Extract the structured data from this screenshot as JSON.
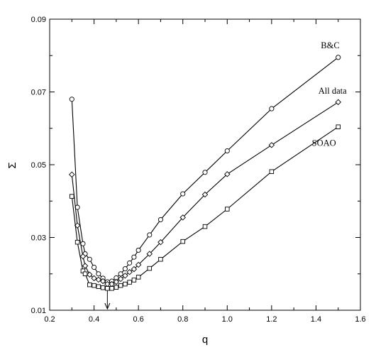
{
  "chart_data": {
    "type": "line",
    "xlabel": "q",
    "ylabel": "Σ",
    "xlim": [
      0.2,
      1.6
    ],
    "ylim": [
      0.01,
      0.09
    ],
    "xticks": [
      "0.2",
      "0.4",
      "0.6",
      "0.8",
      "1.0",
      "1.2",
      "1.4",
      "1.6"
    ],
    "yticks": [
      "0.01",
      "0.03",
      "0.05",
      "0.07",
      "0.09"
    ],
    "grid": false,
    "annotation": {
      "type": "arrow",
      "x": 0.46,
      "points_to": "minimum"
    },
    "series": [
      {
        "name": "B&C",
        "marker": "circle",
        "x": [
          0.3,
          0.325,
          0.35,
          0.36,
          0.38,
          0.4,
          0.42,
          0.44,
          0.46,
          0.48,
          0.5,
          0.52,
          0.54,
          0.56,
          0.58,
          0.6,
          0.65,
          0.7,
          0.8,
          0.9,
          1.0,
          1.2,
          1.5
        ],
        "y": [
          0.068,
          0.0383,
          0.0283,
          0.0255,
          0.024,
          0.0218,
          0.02,
          0.0188,
          0.0178,
          0.018,
          0.0189,
          0.02,
          0.0214,
          0.023,
          0.0246,
          0.0265,
          0.0307,
          0.0349,
          0.042,
          0.0479,
          0.0538,
          0.0654,
          0.0795
        ]
      },
      {
        "name": "All data",
        "marker": "diamond",
        "x": [
          0.3,
          0.325,
          0.35,
          0.36,
          0.38,
          0.4,
          0.42,
          0.44,
          0.46,
          0.48,
          0.5,
          0.52,
          0.54,
          0.56,
          0.58,
          0.6,
          0.65,
          0.7,
          0.8,
          0.9,
          1.0,
          1.2,
          1.5
        ],
        "y": [
          0.0473,
          0.0333,
          0.0248,
          0.0222,
          0.0198,
          0.0188,
          0.0184,
          0.018,
          0.0172,
          0.0172,
          0.0178,
          0.0186,
          0.0195,
          0.0205,
          0.0213,
          0.0225,
          0.0255,
          0.0287,
          0.0355,
          0.0418,
          0.0474,
          0.0554,
          0.0672
        ]
      },
      {
        "name": "SOAO",
        "marker": "square",
        "x": [
          0.3,
          0.325,
          0.35,
          0.36,
          0.38,
          0.4,
          0.42,
          0.44,
          0.46,
          0.48,
          0.5,
          0.52,
          0.54,
          0.56,
          0.58,
          0.6,
          0.65,
          0.7,
          0.8,
          0.9,
          1.0,
          1.2,
          1.5
        ],
        "y": [
          0.0413,
          0.0287,
          0.0208,
          0.02,
          0.017,
          0.0168,
          0.0165,
          0.0162,
          0.016,
          0.016,
          0.0163,
          0.0168,
          0.0172,
          0.0177,
          0.0183,
          0.0191,
          0.0215,
          0.024,
          0.0289,
          0.033,
          0.0378,
          0.0481,
          0.0604
        ]
      }
    ]
  }
}
